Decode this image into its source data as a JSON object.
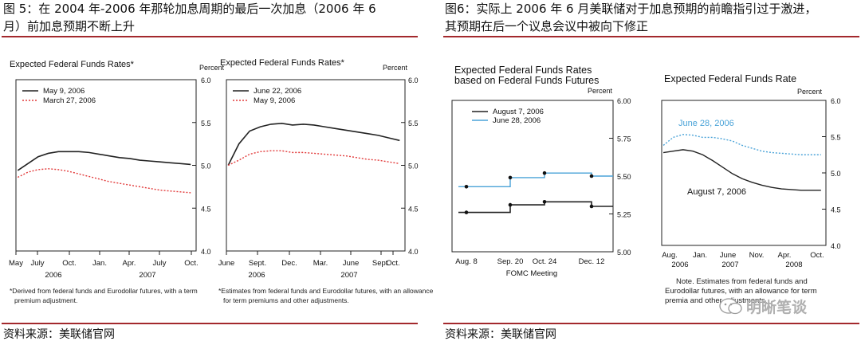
{
  "left_panel": {
    "title": "图 5：在 2004 年-2006 年那轮加息周期的最后一次加息（2006 年 6 月）前加息预期不断上升",
    "title_line1": "图 5：在 2004 年-2006 年那轮加息周期的最后一次加息（2006 年 6",
    "title_line2": "月）前加息预期不断上升",
    "source": "资料来源：美联储官网",
    "note_a": "*Derived from federal funds and Eurodollar futures, with a term premium adjustment.",
    "note_a_1": "*Derived from federal funds and Eurodollar futures, with a term",
    "note_a_2": "premium adjustment.",
    "note_b": "*Estimates from federal funds and Eurodollar futures, with an allowance for term premiums and other adjustments.",
    "note_b_1": "*Estimates from federal funds and Eurodollar futures, with an allowance",
    "note_b_2": "for term premiums and other adjustments."
  },
  "right_panel": {
    "title": "图6：实际上 2006 年 6 月美联储对于加息预期的前瞻指引过于激进，其预期在后一个议息会议中被向下修正",
    "title_line1": "图6：实际上 2006 年 6 月美联储对于加息预期的前瞻指引过于激进，",
    "title_line2": "其预期在后一个议息会议中被向下修正",
    "source": "资料来源：美联储官网",
    "note": "Note. Estimates from federal funds and Eurodollar futures, with an allowance for term premia and other adjustments.",
    "note_1": "Note. Estimates from federal funds and",
    "note_2": "Eurodollar futures, with an allowance for term",
    "note_3": "premia and other adjustments.",
    "watermark": "明晰笔谈"
  },
  "colors": {
    "rule": "#a3292d",
    "black_series": "#222222",
    "red_series": "#e23b3b",
    "blue_series": "#4aa3d8"
  },
  "chart_data": [
    {
      "type": "line",
      "title": "Expected Federal Funds Rates*",
      "unit_label": "Percent",
      "x_ticks": [
        "May",
        "July",
        "Oct.",
        "Jan.",
        "Apr.",
        "July",
        "Oct."
      ],
      "x_years": [
        "2006",
        "2007"
      ],
      "ylim": [
        4.0,
        6.0
      ],
      "y_ticks": [
        "6.0",
        "5.5",
        "5.0",
        "4.5",
        "4.0"
      ],
      "series": [
        {
          "name": "May 9, 2006",
          "style": "solid",
          "x": [
            0,
            1,
            2,
            3,
            4,
            5,
            6,
            7,
            8,
            9,
            10,
            11,
            12,
            13,
            14,
            15,
            16,
            17
          ],
          "y": [
            4.94,
            5.02,
            5.1,
            5.14,
            5.16,
            5.16,
            5.16,
            5.15,
            5.13,
            5.11,
            5.09,
            5.08,
            5.06,
            5.05,
            5.04,
            5.03,
            5.02,
            5.01
          ]
        },
        {
          "name": "March 27, 2006",
          "style": "dotted",
          "x": [
            0,
            1,
            2,
            3,
            4,
            5,
            6,
            7,
            8,
            9,
            10,
            11,
            12,
            13,
            14,
            15,
            16,
            17
          ],
          "y": [
            4.86,
            4.92,
            4.95,
            4.96,
            4.95,
            4.93,
            4.9,
            4.87,
            4.84,
            4.81,
            4.79,
            4.77,
            4.75,
            4.73,
            4.71,
            4.7,
            4.69,
            4.68
          ]
        }
      ]
    },
    {
      "type": "line",
      "title": "Expected Federal Funds Rates*",
      "unit_label": "Percent",
      "x_ticks": [
        "June",
        "Sept.",
        "Dec.",
        "Mar.",
        "June",
        "Sept.",
        "Oct."
      ],
      "x_years": [
        "2006",
        "2007"
      ],
      "ylim": [
        4.0,
        6.0
      ],
      "y_ticks": [
        "6.0",
        "5.5",
        "5.0",
        "4.5",
        "4.0"
      ],
      "series": [
        {
          "name": "June 22, 2006",
          "style": "solid",
          "x": [
            0,
            1,
            2,
            3,
            4,
            5,
            6,
            7,
            8,
            9,
            10,
            11,
            12,
            13,
            14,
            15,
            16
          ],
          "y": [
            5.0,
            5.25,
            5.4,
            5.45,
            5.48,
            5.49,
            5.47,
            5.48,
            5.47,
            5.45,
            5.43,
            5.41,
            5.39,
            5.37,
            5.35,
            5.32,
            5.29
          ]
        },
        {
          "name": "May 9, 2006",
          "style": "dotted",
          "x": [
            0,
            1,
            2,
            3,
            4,
            5,
            6,
            7,
            8,
            9,
            10,
            11,
            12,
            13,
            14,
            15,
            16
          ],
          "y": [
            5.0,
            5.06,
            5.13,
            5.16,
            5.17,
            5.17,
            5.15,
            5.15,
            5.14,
            5.13,
            5.12,
            5.11,
            5.09,
            5.07,
            5.06,
            5.04,
            5.02
          ]
        }
      ]
    },
    {
      "type": "line",
      "title": "Expected Federal Funds Rates based on Federal Funds Futures",
      "title_line1": "Expected Federal Funds Rates",
      "title_line2": "based on Federal Funds Futures",
      "unit_label": "Percent",
      "xlabel": "FOMC Meeting",
      "x_ticks": [
        "Aug. 8",
        "Sep. 20",
        "Oct. 24",
        "Dec. 12"
      ],
      "ylim": [
        5.0,
        6.0
      ],
      "y_ticks": [
        "6.00",
        "5.75",
        "5.50",
        "5.25",
        "5.00"
      ],
      "series": [
        {
          "name": "August 7, 2006",
          "style": "solid",
          "x": [
            0,
            1,
            2,
            3
          ],
          "y": [
            5.26,
            5.31,
            5.33,
            5.3
          ]
        },
        {
          "name": "June 28, 2006",
          "style": "solid",
          "x": [
            0,
            1,
            2,
            3
          ],
          "y": [
            5.43,
            5.49,
            5.52,
            5.5
          ]
        }
      ]
    },
    {
      "type": "line",
      "title": "Expected Federal Funds Rate",
      "unit_label": "Percent",
      "x_ticks": [
        "Aug.",
        "Jan.",
        "June",
        "Nov.",
        "Apr.",
        "Oct."
      ],
      "x_years": [
        "2006",
        "2007",
        "2008"
      ],
      "ylim": [
        4.0,
        6.0
      ],
      "y_ticks": [
        "6.0",
        "5.5",
        "5.0",
        "4.5",
        "4.0"
      ],
      "series": [
        {
          "name": "June 28, 2006",
          "style": "dotted",
          "x": [
            0,
            1,
            2,
            3,
            4,
            5,
            6,
            7,
            8,
            9,
            10,
            11,
            12,
            13,
            14,
            15,
            16
          ],
          "y": [
            5.38,
            5.49,
            5.53,
            5.52,
            5.49,
            5.49,
            5.47,
            5.44,
            5.38,
            5.34,
            5.3,
            5.28,
            5.27,
            5.26,
            5.25,
            5.25,
            5.25
          ]
        },
        {
          "name": "August 7, 2006",
          "style": "solid",
          "x": [
            0,
            1,
            2,
            3,
            4,
            5,
            6,
            7,
            8,
            9,
            10,
            11,
            12,
            13,
            14,
            15,
            16
          ],
          "y": [
            5.28,
            5.3,
            5.32,
            5.3,
            5.25,
            5.17,
            5.08,
            4.99,
            4.92,
            4.87,
            4.83,
            4.8,
            4.78,
            4.77,
            4.76,
            4.76,
            4.76
          ]
        }
      ]
    }
  ]
}
